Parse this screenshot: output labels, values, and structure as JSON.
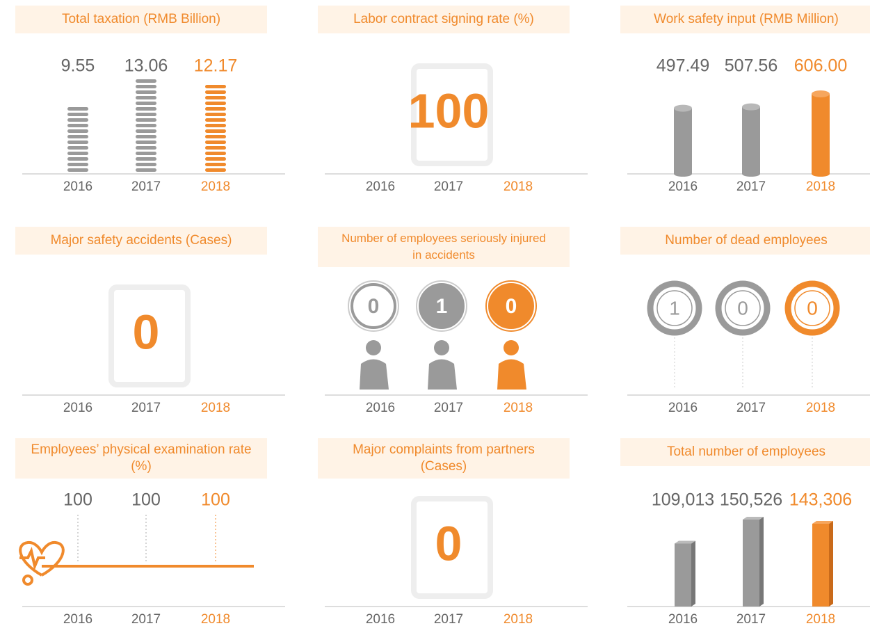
{
  "panels": [
    {
      "type": "stack",
      "title": "Total taxation (RMB Billion)",
      "years": [
        "2016",
        "2017",
        "2018"
      ],
      "values": [
        9.55,
        13.06,
        12.17
      ]
    },
    {
      "type": "big",
      "title": "Labor contract signing rate (%)",
      "years": [
        "2016",
        "2017",
        "2018"
      ],
      "value": 100
    },
    {
      "type": "cylinder",
      "title": "Work safety input (RMB Million)",
      "years": [
        "2016",
        "2017",
        "2018"
      ],
      "values": [
        497.49,
        507.56,
        606
      ],
      "value_labels": [
        "497.49",
        "507.56",
        "606.00"
      ]
    },
    {
      "type": "big",
      "title": "Major safety accidents (Cases)",
      "years": [
        "2016",
        "2017",
        "2018"
      ],
      "value": 0
    },
    {
      "type": "person",
      "title": "Number of employees seriously injured in accidents",
      "years": [
        "2016",
        "2017",
        "2018"
      ],
      "values": [
        0,
        1,
        0
      ]
    },
    {
      "type": "ring",
      "title": "Number of dead employees",
      "years": [
        "2016",
        "2017",
        "2018"
      ],
      "values": [
        1,
        0,
        0
      ]
    },
    {
      "type": "line",
      "title": "Employees’ physical examination rate (%)",
      "years": [
        "2016",
        "2017",
        "2018"
      ],
      "values": [
        100,
        100,
        100
      ]
    },
    {
      "type": "big",
      "title": "Major complaints from partners (Cases)",
      "years": [
        "2016",
        "2017",
        "2018"
      ],
      "value": 0
    },
    {
      "type": "box",
      "title": "Total number of employees",
      "years": [
        "2016",
        "2017",
        "2018"
      ],
      "values": [
        109013,
        150526,
        143306
      ],
      "value_labels": [
        "109,013",
        "150,526",
        "143,306"
      ]
    }
  ]
}
